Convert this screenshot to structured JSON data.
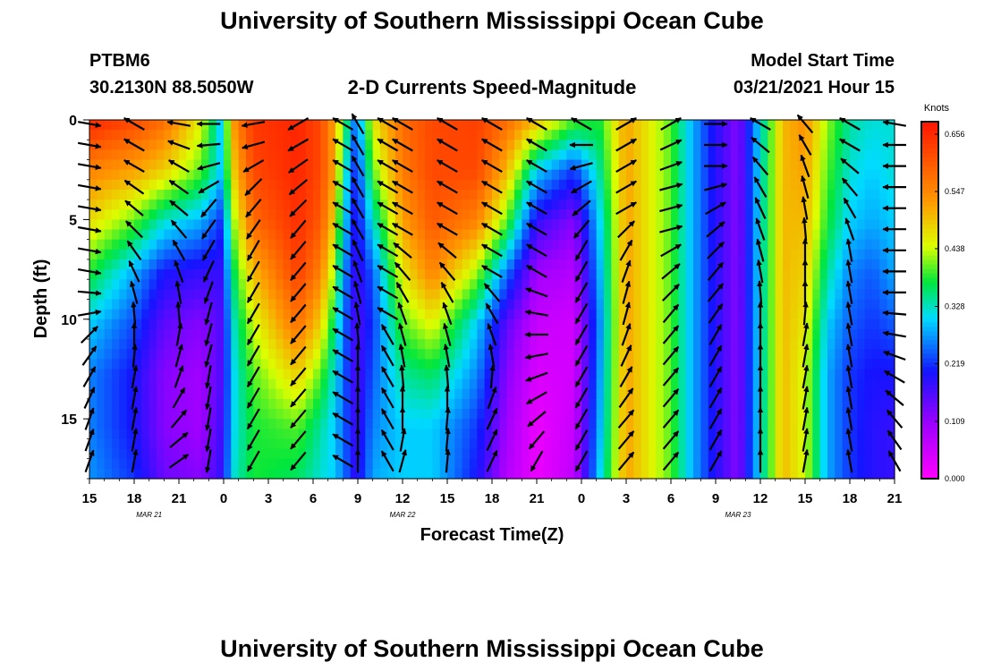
{
  "page": {
    "title_top": "University of Southern Mississippi Ocean Cube",
    "title_bottom": "University of Southern Mississippi Ocean Cube",
    "station": "PTBM6",
    "coordinates": "30.2130N 88.5050W",
    "plot_title": "2-D Currents Speed-Magnitude",
    "model_start_label": "Model Start Time",
    "model_start_value": "03/21/2021 Hour 15"
  },
  "chart_data": {
    "type": "heatmap",
    "title": "2-D Currents Speed-Magnitude",
    "xlabel": "Forecast Time(Z)",
    "ylabel": "Depth (ft)",
    "x_range_hours": [
      0,
      54
    ],
    "y_range_ft": [
      0,
      18
    ],
    "x_ticks": [
      {
        "h": 0,
        "label": "15"
      },
      {
        "h": 3,
        "label": "18"
      },
      {
        "h": 6,
        "label": "21"
      },
      {
        "h": 9,
        "label": "0"
      },
      {
        "h": 12,
        "label": "3"
      },
      {
        "h": 15,
        "label": "6"
      },
      {
        "h": 18,
        "label": "9"
      },
      {
        "h": 21,
        "label": "12"
      },
      {
        "h": 24,
        "label": "15"
      },
      {
        "h": 27,
        "label": "18"
      },
      {
        "h": 30,
        "label": "21"
      },
      {
        "h": 33,
        "label": "0"
      },
      {
        "h": 36,
        "label": "3"
      },
      {
        "h": 39,
        "label": "6"
      },
      {
        "h": 42,
        "label": "9"
      },
      {
        "h": 45,
        "label": "12"
      },
      {
        "h": 48,
        "label": "15"
      },
      {
        "h": 51,
        "label": "18"
      },
      {
        "h": 54,
        "label": "21"
      }
    ],
    "date_labels": [
      {
        "h": 4,
        "label": "MAR  21"
      },
      {
        "h": 21,
        "label": "MAR  22"
      },
      {
        "h": 43.5,
        "label": "MAR  23"
      }
    ],
    "y_ticks": [
      {
        "v": 0,
        "label": "0"
      },
      {
        "v": 5,
        "label": "5"
      },
      {
        "v": 10,
        "label": "10"
      },
      {
        "v": 15,
        "label": "15"
      }
    ],
    "colorbar": {
      "unit": "Knots",
      "min": 0.0,
      "max": 0.68,
      "labels": [
        {
          "v": 0.656,
          "label": "0.656"
        },
        {
          "v": 0.547,
          "label": "0.547"
        },
        {
          "v": 0.438,
          "label": "0.438"
        },
        {
          "v": 0.328,
          "label": "0.328"
        },
        {
          "v": 0.219,
          "label": "0.219"
        },
        {
          "v": 0.109,
          "label": "0.109"
        },
        {
          "v": 0.0,
          "label": "0.000"
        }
      ]
    },
    "speed_field_keyframes": [
      {
        "h": 0.0,
        "speeds": [
          0.66,
          0.55,
          0.47,
          0.38,
          0.3,
          0.26,
          0.26,
          0.27
        ]
      },
      {
        "h": 3.0,
        "speeds": [
          0.62,
          0.52,
          0.4,
          0.28,
          0.23,
          0.2,
          0.2,
          0.22
        ]
      },
      {
        "h": 5.0,
        "speeds": [
          0.58,
          0.48,
          0.32,
          0.2,
          0.15,
          0.12,
          0.12,
          0.14
        ]
      },
      {
        "h": 7.5,
        "speeds": [
          0.45,
          0.4,
          0.28,
          0.18,
          0.12,
          0.1,
          0.1,
          0.12
        ]
      },
      {
        "h": 8.8,
        "speeds": [
          0.3,
          0.3,
          0.22,
          0.18,
          0.16,
          0.16,
          0.17,
          0.18
        ]
      },
      {
        "h": 9.8,
        "speeds": [
          0.55,
          0.5,
          0.44,
          0.38,
          0.34,
          0.32,
          0.32,
          0.33
        ]
      },
      {
        "h": 11.0,
        "speeds": [
          0.64,
          0.62,
          0.58,
          0.5,
          0.44,
          0.4,
          0.38,
          0.38
        ]
      },
      {
        "h": 14.0,
        "speeds": [
          0.66,
          0.66,
          0.65,
          0.63,
          0.57,
          0.48,
          0.4,
          0.36
        ]
      },
      {
        "h": 15.5,
        "speeds": [
          0.62,
          0.62,
          0.6,
          0.55,
          0.48,
          0.4,
          0.34,
          0.32
        ]
      },
      {
        "h": 16.4,
        "speeds": [
          0.52,
          0.52,
          0.48,
          0.42,
          0.36,
          0.32,
          0.3,
          0.3
        ]
      },
      {
        "h": 17.0,
        "speeds": [
          0.4,
          0.36,
          0.32,
          0.28,
          0.26,
          0.25,
          0.25,
          0.26
        ]
      },
      {
        "h": 17.9,
        "speeds": [
          0.24,
          0.2,
          0.18,
          0.17,
          0.16,
          0.16,
          0.17,
          0.18
        ]
      },
      {
        "h": 19.0,
        "speeds": [
          0.46,
          0.4,
          0.32,
          0.24,
          0.22,
          0.24,
          0.26,
          0.28
        ]
      },
      {
        "h": 21.0,
        "speeds": [
          0.58,
          0.56,
          0.52,
          0.46,
          0.4,
          0.34,
          0.3,
          0.3
        ]
      },
      {
        "h": 23.0,
        "speeds": [
          0.62,
          0.62,
          0.6,
          0.55,
          0.45,
          0.36,
          0.3,
          0.3
        ]
      },
      {
        "h": 26.0,
        "speeds": [
          0.63,
          0.62,
          0.55,
          0.42,
          0.3,
          0.26,
          0.22,
          0.2
        ]
      },
      {
        "h": 28.0,
        "speeds": [
          0.58,
          0.5,
          0.4,
          0.25,
          0.15,
          0.12,
          0.1,
          0.08
        ]
      },
      {
        "h": 30.0,
        "speeds": [
          0.5,
          0.3,
          0.18,
          0.1,
          0.06,
          0.04,
          0.02,
          0.02
        ]
      },
      {
        "h": 32.5,
        "speeds": [
          0.4,
          0.22,
          0.12,
          0.08,
          0.05,
          0.05,
          0.06,
          0.07
        ]
      },
      {
        "h": 34.2,
        "speeds": [
          0.38,
          0.34,
          0.3,
          0.28,
          0.26,
          0.27,
          0.28,
          0.3
        ]
      },
      {
        "h": 36.0,
        "speeds": [
          0.52,
          0.52,
          0.52,
          0.52,
          0.52,
          0.52,
          0.52,
          0.52
        ]
      },
      {
        "h": 37.5,
        "speeds": [
          0.46,
          0.46,
          0.46,
          0.46,
          0.46,
          0.46,
          0.46,
          0.46
        ]
      },
      {
        "h": 39.0,
        "speeds": [
          0.4,
          0.4,
          0.4,
          0.4,
          0.4,
          0.4,
          0.4,
          0.4
        ]
      },
      {
        "h": 40.2,
        "speeds": [
          0.3,
          0.3,
          0.3,
          0.3,
          0.3,
          0.3,
          0.3,
          0.3
        ]
      },
      {
        "h": 41.8,
        "speeds": [
          0.2,
          0.2,
          0.2,
          0.2,
          0.2,
          0.2,
          0.2,
          0.2
        ]
      },
      {
        "h": 43.5,
        "speeds": [
          0.12,
          0.12,
          0.12,
          0.12,
          0.12,
          0.12,
          0.12,
          0.12
        ]
      },
      {
        "h": 45.2,
        "speeds": [
          0.34,
          0.34,
          0.34,
          0.34,
          0.34,
          0.34,
          0.34,
          0.34
        ]
      },
      {
        "h": 46.5,
        "speeds": [
          0.5,
          0.5,
          0.5,
          0.5,
          0.5,
          0.5,
          0.5,
          0.5
        ]
      },
      {
        "h": 48.0,
        "speeds": [
          0.54,
          0.52,
          0.5,
          0.48,
          0.46,
          0.44,
          0.44,
          0.44
        ]
      },
      {
        "h": 49.5,
        "speeds": [
          0.42,
          0.4,
          0.38,
          0.34,
          0.3,
          0.28,
          0.28,
          0.28
        ]
      },
      {
        "h": 51.0,
        "speeds": [
          0.34,
          0.32,
          0.3,
          0.26,
          0.24,
          0.22,
          0.22,
          0.22
        ]
      },
      {
        "h": 52.5,
        "speeds": [
          0.32,
          0.3,
          0.28,
          0.24,
          0.22,
          0.2,
          0.19,
          0.19
        ]
      },
      {
        "h": 54.0,
        "speeds": [
          0.32,
          0.32,
          0.3,
          0.28,
          0.24,
          0.2,
          0.18,
          0.18
        ]
      }
    ],
    "vector_columns": [
      {
        "h": 0.0,
        "dirs": [
          100,
          100,
          100,
          100,
          100,
          100,
          100,
          100,
          95,
          80,
          45,
          35,
          30,
          25,
          20,
          20,
          20
        ]
      },
      {
        "h": 3.0,
        "dirs": [
          300,
          300,
          300,
          305,
          310,
          315,
          325,
          335,
          345,
          355,
          360,
          5,
          10,
          10,
          10,
          10,
          10
        ]
      },
      {
        "h": 6.0,
        "dirs": [
          280,
          290,
          300,
          305,
          310,
          320,
          330,
          340,
          350,
          355,
          10,
          15,
          20,
          30,
          40,
          50,
          55
        ]
      },
      {
        "h": 8.0,
        "dirs": [
          270,
          265,
          255,
          240,
          220,
          215,
          210,
          205,
          200,
          195,
          195,
          195,
          190,
          190,
          190,
          190,
          190
        ]
      },
      {
        "h": 11.0,
        "dirs": [
          260,
          255,
          240,
          225,
          220,
          215,
          210,
          210,
          210,
          210,
          210,
          210,
          210,
          210,
          210,
          210,
          210
        ]
      },
      {
        "h": 14.0,
        "dirs": [
          240,
          240,
          235,
          230,
          225,
          220,
          220,
          220,
          220,
          220,
          220,
          220,
          220,
          220,
          220,
          220,
          220
        ]
      },
      {
        "h": 17.0,
        "dirs": [
          300,
          300,
          300,
          300,
          300,
          300,
          300,
          300,
          300,
          300,
          300,
          300,
          300,
          300,
          300,
          300,
          300
        ]
      },
      {
        "h": 18.0,
        "dirs": [
          330,
          330,
          330,
          330,
          330,
          330,
          335,
          340,
          345,
          350,
          355,
          360,
          360,
          360,
          360,
          360,
          360
        ]
      },
      {
        "h": 20.0,
        "dirs": [
          300,
          300,
          300,
          300,
          300,
          300,
          300,
          300,
          300,
          300,
          330,
          330,
          330,
          330,
          330,
          330,
          330
        ]
      },
      {
        "h": 21.0,
        "dirs": [
          300,
          300,
          300,
          300,
          300,
          300,
          310,
          320,
          330,
          340,
          345,
          350,
          355,
          360,
          360,
          10,
          15
        ]
      },
      {
        "h": 24.0,
        "dirs": [
          300,
          300,
          300,
          300,
          300,
          300,
          310,
          320,
          330,
          340,
          345,
          350,
          355,
          360,
          5,
          5,
          5
        ]
      },
      {
        "h": 27.0,
        "dirs": [
          300,
          300,
          300,
          300,
          300,
          300,
          300,
          300,
          320,
          330,
          340,
          350,
          5,
          20,
          25,
          25,
          25
        ]
      },
      {
        "h": 30.0,
        "dirs": [
          300,
          300,
          300,
          300,
          300,
          300,
          300,
          300,
          290,
          280,
          270,
          260,
          250,
          240,
          230,
          220,
          210
        ]
      },
      {
        "h": 33.0,
        "dirs": [
          300,
          270,
          255,
          240,
          230,
          220,
          210,
          210,
          210,
          210,
          210,
          210,
          210,
          210,
          210,
          210,
          210
        ]
      },
      {
        "h": 36.0,
        "dirs": [
          60,
          60,
          60,
          60,
          60,
          45,
          30,
          20,
          15,
          15,
          20,
          25,
          30,
          35,
          40,
          40,
          40
        ]
      },
      {
        "h": 39.0,
        "dirs": [
          60,
          65,
          70,
          75,
          75,
          75,
          60,
          50,
          45,
          40,
          40,
          40,
          40,
          40,
          40,
          40,
          40
        ]
      },
      {
        "h": 42.0,
        "dirs": [
          90,
          90,
          90,
          75,
          60,
          50,
          45,
          40,
          40,
          35,
          30,
          30,
          30,
          30,
          30,
          30,
          30
        ]
      },
      {
        "h": 45.0,
        "dirs": [
          300,
          310,
          320,
          330,
          335,
          340,
          345,
          350,
          355,
          360,
          360,
          360,
          360,
          360,
          360,
          360,
          360
        ]
      },
      {
        "h": 48.0,
        "dirs": [
          320,
          330,
          340,
          345,
          350,
          355,
          360,
          360,
          360,
          5,
          10,
          10,
          10,
          10,
          10,
          10,
          10
        ]
      },
      {
        "h": 51.0,
        "dirs": [
          300,
          300,
          310,
          320,
          330,
          340,
          350,
          350,
          350,
          350,
          350,
          350,
          350,
          350,
          350,
          350,
          350
        ]
      },
      {
        "h": 54.0,
        "dirs": [
          280,
          270,
          270,
          270,
          270,
          270,
          270,
          270,
          270,
          275,
          280,
          290,
          300,
          310,
          320,
          325,
          330
        ]
      }
    ]
  }
}
